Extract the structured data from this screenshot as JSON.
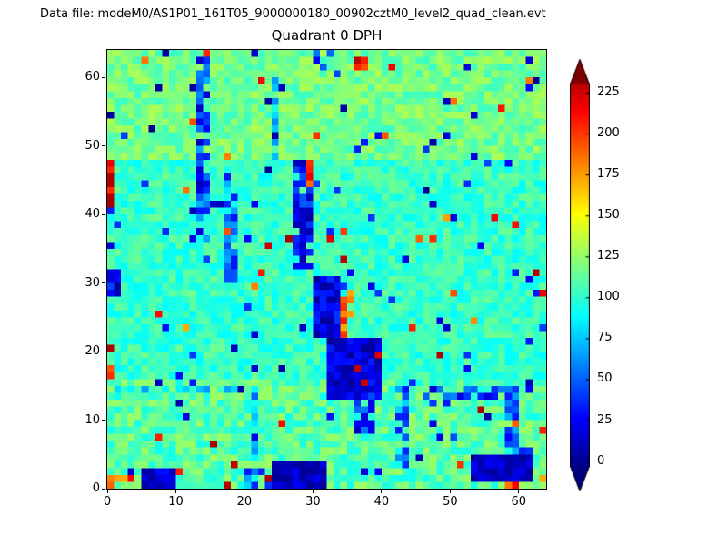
{
  "header": {
    "datafile": "Data file: modeM0/AS1P01_161T05_9000000180_00902cztM0_level2_quad_clean.evt"
  },
  "chart_data": {
    "type": "heatmap",
    "title": "Quadrant 0 DPH",
    "grid_size": 64,
    "x_range": [
      0,
      64
    ],
    "y_range": [
      0,
      64
    ],
    "x_ticks": [
      0,
      10,
      20,
      30,
      40,
      50,
      60
    ],
    "y_ticks": [
      0,
      10,
      20,
      30,
      40,
      50,
      60
    ],
    "colormap": "jet",
    "vmin": -5,
    "vmax": 245,
    "colorbar": {
      "ticks": [
        0,
        25,
        50,
        75,
        100,
        125,
        150,
        175,
        200,
        225
      ],
      "body_min": -3,
      "body_max": 230,
      "extend": "both"
    },
    "base_bands": [
      {
        "y0": 0,
        "y1": 15,
        "min": 92,
        "max": 128
      },
      {
        "y0": 16,
        "y1": 47,
        "min": 88,
        "max": 116
      },
      {
        "y0": 48,
        "y1": 63,
        "min": 102,
        "max": 132
      }
    ],
    "features": [
      {
        "name": "left-red-column",
        "x": 0,
        "y": 40,
        "w": 1,
        "h": 8,
        "min": 200,
        "max": 240,
        "density": 1
      },
      {
        "name": "left-blue-patch",
        "x": 0,
        "y": 28,
        "w": 2,
        "h": 4,
        "min": 0,
        "max": 30,
        "density": 1
      },
      {
        "name": "left-orange-specks",
        "x": 0,
        "y": 16,
        "w": 1,
        "h": 2,
        "min": 170,
        "max": 210,
        "density": 1
      },
      {
        "name": "streak-x13",
        "x": 13,
        "y": 36,
        "w": 2,
        "h": 27,
        "min": 10,
        "max": 70,
        "density": 0.85
      },
      {
        "name": "streak-x17",
        "x": 17,
        "y": 30,
        "w": 2,
        "h": 16,
        "min": 30,
        "max": 85,
        "density": 0.7
      },
      {
        "name": "col24-blue-top",
        "x": 24,
        "y": 48,
        "w": 1,
        "h": 13,
        "min": 60,
        "max": 100,
        "density": 0.6
      },
      {
        "name": "mid-blue-column",
        "x": 27,
        "y": 32,
        "w": 3,
        "h": 16,
        "min": 5,
        "max": 50,
        "density": 0.9
      },
      {
        "name": "orange-by-column",
        "x": 29,
        "y": 44,
        "w": 1,
        "h": 4,
        "min": 180,
        "max": 230,
        "density": 1
      },
      {
        "name": "central-blob-upper",
        "x": 30,
        "y": 22,
        "w": 4,
        "h": 9,
        "min": 0,
        "max": 40,
        "density": 1
      },
      {
        "name": "orange-arc",
        "x": 34,
        "y": 21,
        "w": 2,
        "h": 8,
        "min": 170,
        "max": 220,
        "density": 0.8
      },
      {
        "name": "central-blob-lower",
        "x": 32,
        "y": 13,
        "w": 8,
        "h": 9,
        "min": 0,
        "max": 35,
        "density": 1
      },
      {
        "name": "blue-tail",
        "x": 36,
        "y": 8,
        "w": 3,
        "h": 6,
        "min": 10,
        "max": 60,
        "density": 0.7
      },
      {
        "name": "col42-blue",
        "x": 42,
        "y": 3,
        "w": 2,
        "h": 12,
        "min": 30,
        "max": 90,
        "density": 0.6
      },
      {
        "name": "seam-row-left",
        "x": 0,
        "y": 14,
        "w": 20,
        "h": 1,
        "min": 60,
        "max": 110,
        "density": 0.7
      },
      {
        "name": "col21-blue",
        "x": 21,
        "y": 4,
        "w": 1,
        "h": 11,
        "min": 50,
        "max": 95,
        "density": 0.7
      },
      {
        "name": "bottom-left-orange",
        "x": 0,
        "y": 0,
        "w": 3,
        "h": 2,
        "min": 170,
        "max": 220,
        "density": 0.8
      },
      {
        "name": "bottom-left-blob",
        "x": 5,
        "y": 0,
        "w": 5,
        "h": 3,
        "min": 0,
        "max": 30,
        "density": 1
      },
      {
        "name": "bottom-mid-blue2",
        "x": 20,
        "y": 0,
        "w": 4,
        "h": 3,
        "min": 30,
        "max": 80,
        "density": 0.6
      },
      {
        "name": "bottom-mid-blob",
        "x": 24,
        "y": 0,
        "w": 8,
        "h": 4,
        "min": 0,
        "max": 25,
        "density": 1
      },
      {
        "name": "right-dark-row",
        "x": 46,
        "y": 13,
        "w": 14,
        "h": 2,
        "min": 10,
        "max": 60,
        "density": 0.6
      },
      {
        "name": "right-blue-column",
        "x": 58,
        "y": 5,
        "w": 2,
        "h": 10,
        "min": 20,
        "max": 70,
        "density": 0.8
      },
      {
        "name": "bottom-right-blob",
        "x": 53,
        "y": 1,
        "w": 9,
        "h": 4,
        "min": 0,
        "max": 25,
        "density": 1
      },
      {
        "name": "bottom-right-orange",
        "x": 58,
        "y": 0,
        "w": 2,
        "h": 1,
        "min": 180,
        "max": 220,
        "density": 1
      },
      {
        "name": "top-mid-blue",
        "x": 30,
        "y": 61,
        "w": 3,
        "h": 3,
        "min": 20,
        "max": 60,
        "density": 0.7
      },
      {
        "name": "top-mid-red",
        "x": 36,
        "y": 61,
        "w": 2,
        "h": 2,
        "min": 190,
        "max": 235,
        "density": 0.8
      }
    ],
    "outliers": {
      "low_probability": 0.03,
      "low_range": [
        0,
        45
      ],
      "high_probability": 0.012,
      "high_range": [
        170,
        235
      ]
    },
    "seed": 902161
  }
}
